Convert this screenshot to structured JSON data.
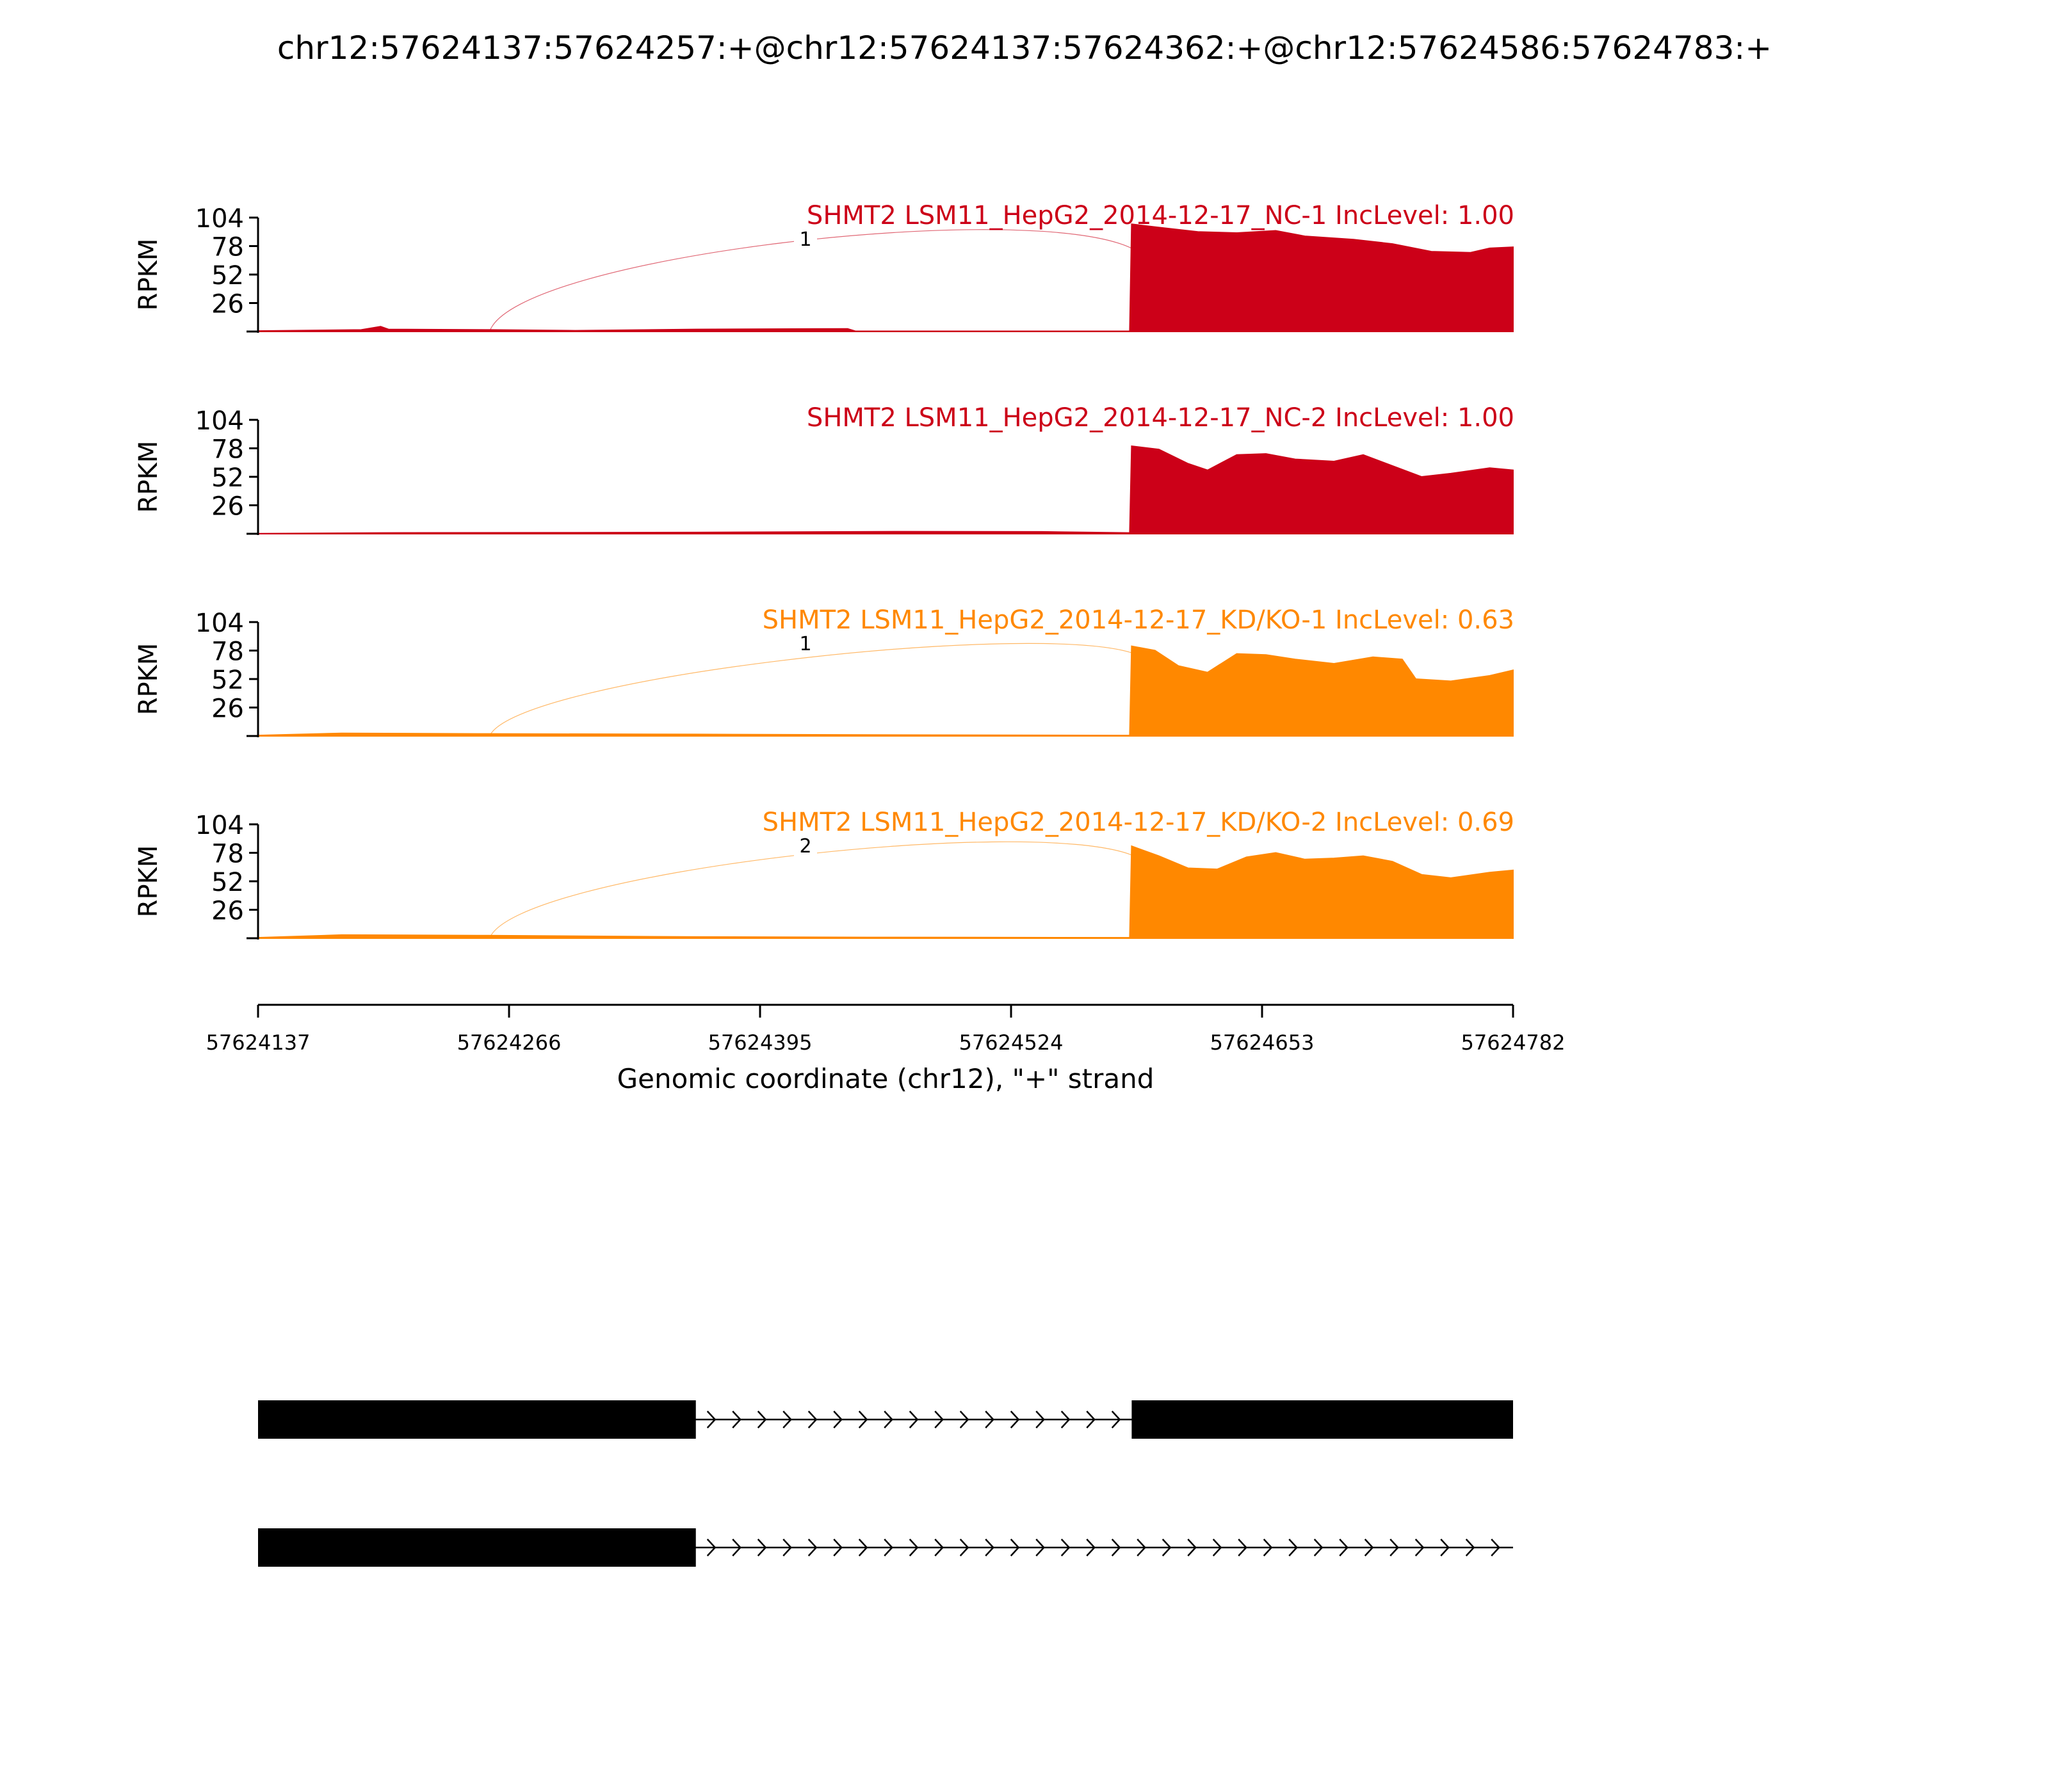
{
  "title": "chr12:57624137:57624257:+@chr12:57624137:57624362:+@chr12:57624586:57624783:+",
  "chart_data": {
    "type": "area",
    "x_min": 57624137,
    "x_max": 57624782,
    "x_ticks": [
      "57624137",
      "57624266",
      "57624395",
      "57624524",
      "57624653",
      "57624782"
    ],
    "xlabel": "Genomic coordinate (chr12), \"+\" strand",
    "ylabel": "RPKM",
    "ylim": [
      0,
      104
    ],
    "y_ticks": [
      "104",
      "78",
      "52",
      "26"
    ],
    "colors": {
      "NC": "#cc0018",
      "KDKO": "#ff8800"
    },
    "panels": [
      {
        "label": "SHMT2 LSM11_HepG2_2014-12-17_NC-1 IncLevel: 1.00",
        "color_key": "NC",
        "junction_label": "1",
        "junction": {
          "from": 57624256,
          "to": 57624586,
          "peak": 104
        },
        "coverage": [
          [
            57624137,
            0.5
          ],
          [
            57624190,
            1.5
          ],
          [
            57624200,
            4.5
          ],
          [
            57624204,
            2.0
          ],
          [
            57624256,
            1.5
          ],
          [
            57624300,
            0.8
          ],
          [
            57624362,
            2.0
          ],
          [
            57624440,
            2.5
          ],
          [
            57624444,
            0.3
          ],
          [
            57624585,
            0.3
          ],
          [
            57624586,
            98
          ],
          [
            57624600,
            95
          ],
          [
            57624620,
            91
          ],
          [
            57624640,
            90
          ],
          [
            57624660,
            92
          ],
          [
            57624675,
            87
          ],
          [
            57624700,
            84
          ],
          [
            57624720,
            80
          ],
          [
            57624740,
            73
          ],
          [
            57624760,
            72
          ],
          [
            57624770,
            76
          ],
          [
            57624782,
            77
          ]
        ]
      },
      {
        "label": "SHMT2 LSM11_HepG2_2014-12-17_NC-2 IncLevel: 1.00",
        "color_key": "NC",
        "junction_label": "",
        "junction": null,
        "coverage": [
          [
            57624137,
            0.2
          ],
          [
            57624200,
            0.8
          ],
          [
            57624300,
            1.0
          ],
          [
            57624362,
            1.2
          ],
          [
            57624470,
            2.0
          ],
          [
            57624540,
            1.8
          ],
          [
            57624585,
            0.8
          ],
          [
            57624586,
            80
          ],
          [
            57624600,
            77
          ],
          [
            57624615,
            64
          ],
          [
            57624625,
            58
          ],
          [
            57624640,
            72
          ],
          [
            57624655,
            73
          ],
          [
            57624670,
            68
          ],
          [
            57624690,
            66
          ],
          [
            57624705,
            72
          ],
          [
            57624720,
            62
          ],
          [
            57624735,
            52
          ],
          [
            57624750,
            55
          ],
          [
            57624770,
            60
          ],
          [
            57624782,
            58
          ]
        ]
      },
      {
        "label": "SHMT2 LSM11_HepG2_2014-12-17_KD/KO-1 IncLevel: 0.63",
        "color_key": "KDKO",
        "junction_label": "1",
        "junction": {
          "from": 57624256,
          "to": 57624586,
          "peak": 88
        },
        "coverage": [
          [
            57624137,
            0.5
          ],
          [
            57624180,
            2.5
          ],
          [
            57624250,
            2.0
          ],
          [
            57624362,
            1.5
          ],
          [
            57624450,
            1.0
          ],
          [
            57624585,
            0.5
          ],
          [
            57624586,
            82
          ],
          [
            57624598,
            78
          ],
          [
            57624610,
            64
          ],
          [
            57624625,
            58
          ],
          [
            57624640,
            75
          ],
          [
            57624655,
            74
          ],
          [
            57624670,
            70
          ],
          [
            57624690,
            66
          ],
          [
            57624710,
            72
          ],
          [
            57624725,
            70
          ],
          [
            57624732,
            52
          ],
          [
            57624750,
            50
          ],
          [
            57624770,
            55
          ],
          [
            57624782,
            60
          ]
        ]
      },
      {
        "label": "SHMT2 LSM11_HepG2_2014-12-17_KD/KO-2 IncLevel: 0.69",
        "color_key": "KDKO",
        "junction_label": "2",
        "junction": {
          "from": 57624256,
          "to": 57624586,
          "peak": 95
        },
        "coverage": [
          [
            57624137,
            0.5
          ],
          [
            57624180,
            3.0
          ],
          [
            57624250,
            2.5
          ],
          [
            57624362,
            1.2
          ],
          [
            57624450,
            0.8
          ],
          [
            57624585,
            0.5
          ],
          [
            57624586,
            84
          ],
          [
            57624600,
            75
          ],
          [
            57624615,
            64
          ],
          [
            57624630,
            63
          ],
          [
            57624645,
            74
          ],
          [
            57624660,
            78
          ],
          [
            57624675,
            72
          ],
          [
            57624690,
            73
          ],
          [
            57624705,
            75
          ],
          [
            57624720,
            70
          ],
          [
            57624735,
            58
          ],
          [
            57624750,
            55
          ],
          [
            57624770,
            60
          ],
          [
            57624782,
            62
          ]
        ]
      }
    ],
    "isoforms": [
      {
        "exons": [
          [
            57624137,
            57624362
          ],
          [
            57624586,
            57624782
          ]
        ]
      },
      {
        "exons": [
          [
            57624137,
            57624362
          ]
        ]
      }
    ]
  }
}
